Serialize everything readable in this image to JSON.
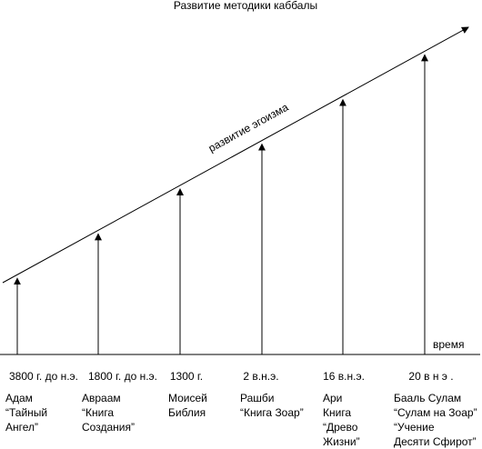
{
  "title": "Развитие методики каббалы",
  "trend_label": "развитие эгоизма",
  "axis_label": "время",
  "colors": {
    "stroke": "#000000",
    "background": "#ffffff"
  },
  "milestones": [
    {
      "date": "3800 г. до н.э.",
      "lines": [
        "Адам",
        "“Тайный",
        "Ангел”"
      ]
    },
    {
      "date": "1800 г. до н.э.",
      "lines": [
        "Авраам",
        "“Книга",
        "Создания”"
      ]
    },
    {
      "date": "1300 г.",
      "lines": [
        "Моисей",
        "Библия"
      ]
    },
    {
      "date": "2 в.н.э.",
      "lines": [
        "Рашби",
        "“Книга Зоар”"
      ]
    },
    {
      "date": "16 в.н.э.",
      "lines": [
        "Ари",
        "Книга",
        "“Древо",
        "Жизни”"
      ]
    },
    {
      "date": "20 в н э .",
      "lines": [
        "Бааль Сулам",
        "“Сулам на Зоар”",
        "“Учение",
        "Десяти Сфирот”"
      ]
    }
  ]
}
